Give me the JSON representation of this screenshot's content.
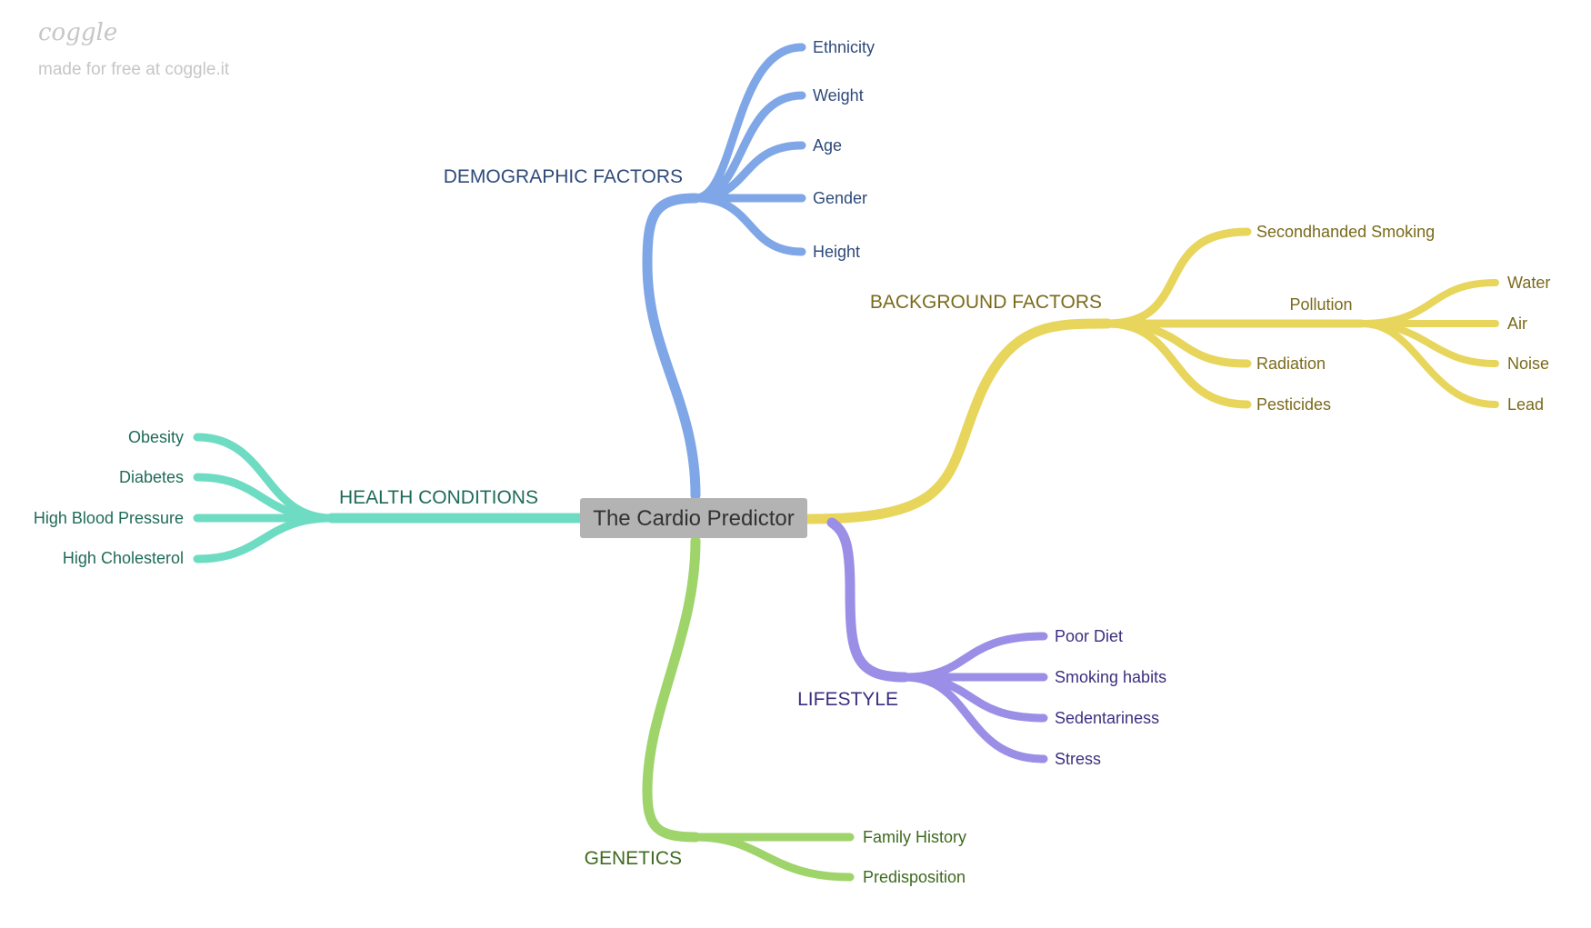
{
  "watermark": {
    "logo": "coggle",
    "subtitle": "made for free at coggle.it"
  },
  "root": {
    "label": "The Cardio Predictor",
    "color": "#b3b3b3"
  },
  "branches": {
    "demographic": {
      "label": "DEMOGRAPHIC FACTORS",
      "color": "#7fa6e6",
      "text_color": "#2e4a7a",
      "items": [
        "Ethnicity",
        "Weight",
        "Age",
        "Gender",
        "Height"
      ]
    },
    "background": {
      "label": "BACKGROUND FACTORS",
      "color": "#e8d55c",
      "text_color": "#7a6a1a",
      "items": [
        "Secondhanded Smoking",
        "Pollution",
        "Radiation",
        "Pesticides"
      ],
      "pollution_items": [
        "Water",
        "Air",
        "Noise",
        "Lead"
      ]
    },
    "health": {
      "label": "HEALTH CONDITIONS",
      "color": "#6edcc3",
      "text_color": "#1f6b58",
      "items": [
        "Obesity",
        "Diabetes",
        "High Blood Pressure",
        "High Cholesterol"
      ]
    },
    "lifestyle": {
      "label": "LIFESTYLE",
      "color": "#9b8ee6",
      "text_color": "#3c2f80",
      "items": [
        "Poor Diet",
        "Smoking habits",
        "Sedentariness",
        "Stress"
      ]
    },
    "genetics": {
      "label": "GENETICS",
      "color": "#9ed46a",
      "text_color": "#3e6a1e",
      "items": [
        "Family History",
        "Predisposition"
      ]
    }
  }
}
